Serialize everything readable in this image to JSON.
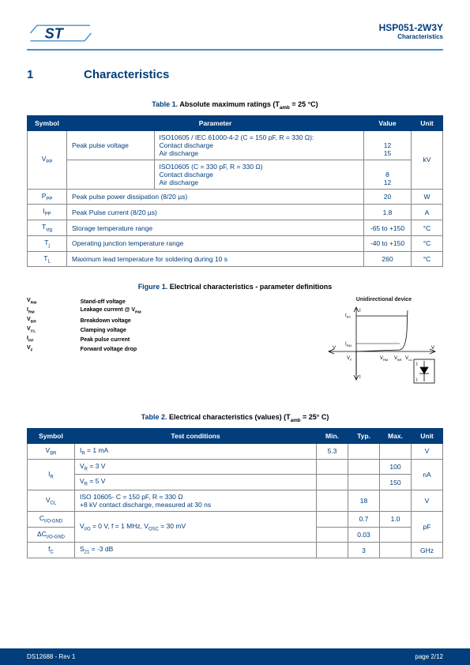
{
  "header": {
    "part": "HSP051-2W3Y",
    "sub": "Characteristics"
  },
  "section": {
    "num": "1",
    "title": "Characteristics"
  },
  "table1": {
    "caption_label": "Table 1.",
    "caption_rest": "Absolute maximum ratings (T",
    "caption_sub": "amb",
    "caption_tail": " = 25 °C)",
    "headers": [
      "Symbol",
      "Parameter",
      "Value",
      "Unit"
    ],
    "rows": [
      {
        "sym": "V",
        "sub": "PP",
        "param": "Peak pulse voltage",
        "lines1": [
          "ISO10605 / IEC 61000-4-2 (C = 150 pF, R = 330 Ω):",
          "Contact discharge",
          "Air discharge"
        ],
        "vals1": [
          "",
          "12",
          "15"
        ],
        "lines2": [
          "ISO10605 (C = 330 pF, R = 330 Ω)",
          "Contact discharge",
          "Air discharge"
        ],
        "vals2": [
          "",
          "8",
          "12"
        ],
        "unit": "kV"
      },
      {
        "sym": "P",
        "sub": "PP",
        "param": "Peak pulse power dissipation (8/20 µs)",
        "val": "20",
        "unit": "W"
      },
      {
        "sym": "I",
        "sub": "PP",
        "param": "Peak Pulse current (8/20 µs)",
        "val": "1.8",
        "unit": "A"
      },
      {
        "sym": "T",
        "sub": "stg",
        "param": "Storage temperature range",
        "val": "-65 to +150",
        "unit": "°C"
      },
      {
        "sym": "T",
        "sub": "j",
        "param": "Operating junction temperature range",
        "val": "-40 to +150",
        "unit": "°C"
      },
      {
        "sym": "T",
        "sub": "L",
        "param": "Maximum lead temperature for soldering during 10 s",
        "val": "260",
        "unit": "°C"
      }
    ]
  },
  "figure1": {
    "caption_label": "Figure 1.",
    "caption_rest": "Electrical characteristics - parameter definitions",
    "title": "Unidirectional device",
    "defs": [
      [
        "V",
        "RM",
        "Stand-off voltage"
      ],
      [
        "I",
        "RM",
        "Leakage current @ V",
        "RM"
      ],
      [
        "V",
        "BR",
        "Breakdown voltage"
      ],
      [
        "V",
        "CL",
        "Clamping voltage"
      ],
      [
        "I",
        "PP",
        "Peak pulse current"
      ],
      [
        "V",
        "F",
        "Forward voltage drop"
      ]
    ],
    "axis": {
      "I": "I",
      "Ipp": "I",
      "Irm": "I",
      "V": "V",
      "Vf": "V",
      "Vrm": "V",
      "Vbr": "V",
      "Vcl": "V"
    }
  },
  "table2": {
    "caption_label": "Table 2.",
    "caption_rest": "Electrical characteristics (values) (T",
    "caption_sub": "amb",
    "caption_tail": " = 25° C)",
    "headers": [
      "Symbol",
      "Test conditions",
      "Min.",
      "Typ.",
      "Max.",
      "Unit"
    ],
    "rows": [
      {
        "sym": "V",
        "sub": "BR",
        "cond": "I",
        "csub": "R",
        "ctail": " = 1 mA",
        "min": "5.3",
        "typ": "",
        "max": "",
        "unit": "V"
      },
      {
        "sym": "I",
        "sub": "R",
        "cond1h": "V",
        "cond1s": "R",
        "cond1t": " = 3 V",
        "max1": "100",
        "cond2h": "V",
        "cond2s": "R",
        "cond2t": " = 5 V",
        "max2": "150",
        "unit": "nA"
      },
      {
        "sym": "V",
        "sub": "CL",
        "cond": "ISO 10605- C = 150 pF, R = 330 Ω",
        "cond2": "+8 kV contact discharge, measured at 30 ns",
        "typ": "18",
        "unit": "V"
      },
      {
        "sym1": "C",
        "sub1": "I/O-GND",
        "sym2": "ΔC",
        "sub2": "I/O-GND",
        "condh": "V",
        "conds": "I/O",
        "condt": " = 0 V, f = 1 MHz, V",
        "conds2": "OSC",
        "condt2": " = 30 mV",
        "typ1": "0.7",
        "max1": "1.0",
        "typ2": "0.03",
        "unit": "pF"
      },
      {
        "sym": "f",
        "sub": "C",
        "cond": "S",
        "csub": "21",
        "ctail": " = -3 dB",
        "typ": "3",
        "unit": "GHz"
      }
    ]
  },
  "footer": {
    "left": "DS12688 - Rev 1",
    "right": "page 2/12"
  }
}
